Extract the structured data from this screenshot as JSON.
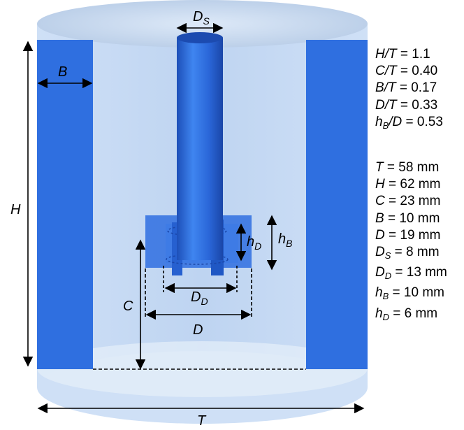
{
  "colors": {
    "baffle": "#2f6fe0",
    "vessel_fill": "#c6d9f3",
    "shaft": "#2d6be0",
    "outline": "#000000"
  },
  "dimension_labels": {
    "T": "T",
    "H": "H",
    "B": "B",
    "C": "C",
    "D": "D",
    "Ds_main": "D",
    "Ds_sub": "S",
    "Dd_main": "D",
    "Dd_sub": "D",
    "hd_main": "h",
    "hd_sub": "D",
    "hb_main": "h",
    "hb_sub": "B"
  },
  "ratios": [
    {
      "var": "H/T",
      "sub": "",
      "value": " = 1.1"
    },
    {
      "var": "C/T",
      "sub": "",
      "value": " = 0.40"
    },
    {
      "var": "B/T",
      "sub": "",
      "value": " = 0.17"
    },
    {
      "var": "D/T",
      "sub": "",
      "value": " = 0.33"
    },
    {
      "var": "h",
      "sub": "B",
      "tail": "/D",
      "value": " = 0.53"
    }
  ],
  "dimensions": [
    {
      "var": "T",
      "sub": "",
      "value": " = 58 mm"
    },
    {
      "var": "H",
      "sub": "",
      "value": " = 62 mm"
    },
    {
      "var": "C",
      "sub": "",
      "value": " = 23 mm"
    },
    {
      "var": "B",
      "sub": "",
      "value": " = 10 mm"
    },
    {
      "var": "D",
      "sub": "",
      "value": " = 19 mm"
    },
    {
      "var": "D",
      "sub": "S",
      "value": " = 8 mm"
    },
    {
      "var": "D",
      "sub": "D",
      "value": " = 13 mm"
    },
    {
      "var": "h",
      "sub": "B",
      "value": " = 10 mm"
    },
    {
      "var": "h",
      "sub": "D",
      "value": " = 6 mm"
    }
  ]
}
